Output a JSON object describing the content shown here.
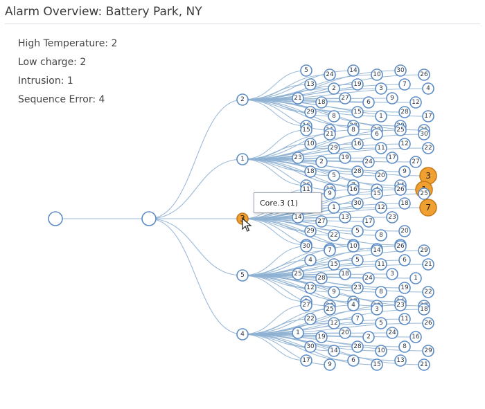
{
  "header": {
    "title": "Alarm Overview: Battery Park, NY"
  },
  "stats": [
    {
      "label": "High Temperature: 2"
    },
    {
      "label": "Low charge: 2"
    },
    {
      "label": "Intrusion: 1"
    },
    {
      "label": "Sequence Error: 4"
    }
  ],
  "tooltip": {
    "text": "Core.3 (1)"
  },
  "colors": {
    "link": "#8fb1d3",
    "node_stroke": "#5b8cc7",
    "alarm_fill": "#f0a030"
  },
  "tree": {
    "root": {
      "label": ""
    },
    "site": {
      "label": ""
    },
    "groups": [
      {
        "label": "2",
        "alarm": false,
        "leaves": [
          "5",
          "13",
          "21",
          "29",
          "16",
          "24",
          "2",
          "18",
          "8",
          "11",
          "14",
          "19",
          "27",
          "15",
          "23",
          "10",
          "3",
          "6",
          "1",
          "22",
          "30",
          "7",
          "9",
          "28",
          "20",
          "26",
          "4",
          "12",
          "17",
          "25"
        ],
        "alarms": []
      },
      {
        "label": "1",
        "alarm": false,
        "leaves": [
          "15",
          "10",
          "23",
          "18",
          "26",
          "21",
          "29",
          "2",
          "5",
          "13",
          "8",
          "16",
          "19",
          "28",
          "7",
          "6",
          "11",
          "24",
          "20",
          "4",
          "25",
          "12",
          "17",
          "9",
          "14",
          "30",
          "22",
          "27"
        ],
        "alarms": [
          "3",
          "1"
        ]
      },
      {
        "label": "3",
        "alarm": true,
        "leaves": [
          "11",
          "6",
          "14",
          "29",
          "2",
          "9",
          "1",
          "27",
          "22",
          "4",
          "16",
          "30",
          "13",
          "5",
          "10",
          "15",
          "12",
          "17",
          "8",
          "21",
          "26",
          "18",
          "23",
          "20",
          "28",
          "25"
        ],
        "alarms": [
          "7"
        ]
      },
      {
        "label": "5",
        "alarm": false,
        "leaves": [
          "30",
          "4",
          "25",
          "12",
          "2",
          "7",
          "15",
          "28",
          "9",
          "20",
          "10",
          "5",
          "18",
          "23",
          "17",
          "14",
          "11",
          "24",
          "8",
          "13",
          "26",
          "6",
          "3",
          "19",
          "16",
          "29",
          "21",
          "1",
          "22",
          "27"
        ],
        "alarms": []
      },
      {
        "label": "4",
        "alarm": false,
        "leaves": [
          "27",
          "22",
          "1",
          "30",
          "17",
          "25",
          "12",
          "19",
          "14",
          "9",
          "4",
          "7",
          "20",
          "28",
          "6",
          "3",
          "5",
          "2",
          "10",
          "15",
          "23",
          "11",
          "24",
          "8",
          "13",
          "18",
          "26",
          "16",
          "29",
          "21"
        ],
        "alarms": []
      }
    ]
  }
}
